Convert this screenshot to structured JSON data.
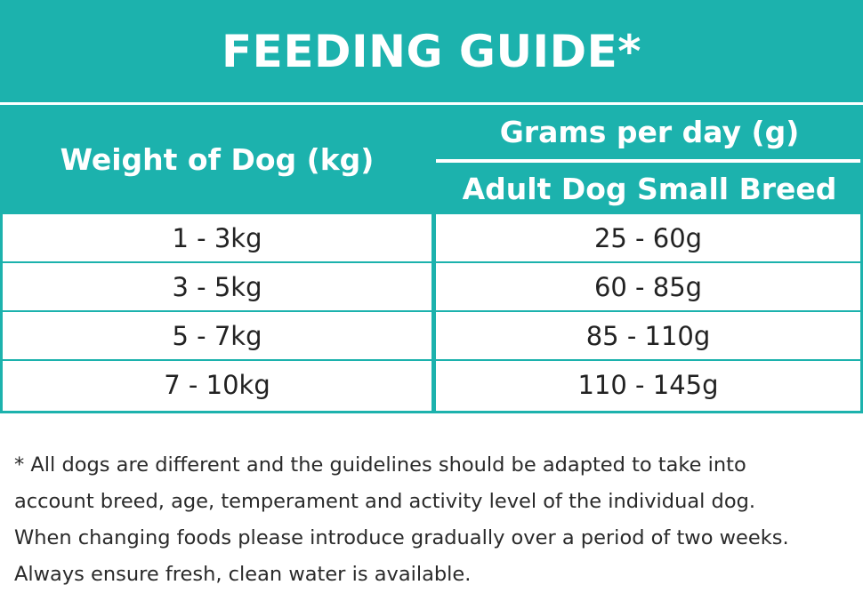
{
  "title": "FEEDING GUIDE*",
  "table": {
    "col1_header": "Weight of Dog (kg)",
    "col2_header": "Grams per day (g)",
    "col2_subheader": "Adult Dog Small Breed",
    "rows": [
      {
        "weight": "1 - 3kg",
        "grams": "25 - 60g"
      },
      {
        "weight": "3 - 5kg",
        "grams": "60 - 85g"
      },
      {
        "weight": "5 - 7kg",
        "grams": "85 - 110g"
      },
      {
        "weight": "7 - 10kg",
        "grams": "110 - 145g"
      }
    ]
  },
  "footnote": {
    "lines": [
      "* All dogs are different and the guidelines should be adapted to take into",
      "account breed, age, temperament and activity level of the individual dog.",
      "When changing foods please introduce gradually over a period of two weeks.",
      "Always ensure fresh, clean water is available."
    ]
  },
  "colors": {
    "accent": "#1cb2ad",
    "text": "#222222",
    "background": "#ffffff"
  }
}
